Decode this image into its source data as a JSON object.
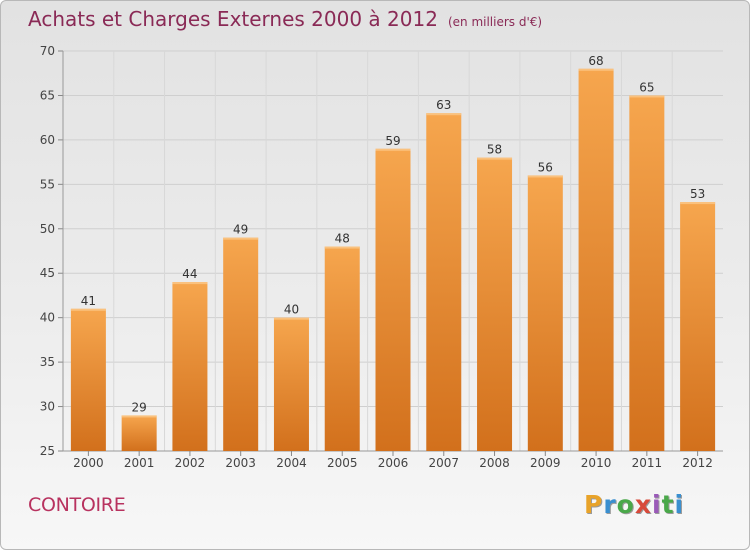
{
  "chart_data": {
    "type": "bar",
    "title": "Achats et Charges Externes 2000 à 2012",
    "unit_label": "(en milliers d'€)",
    "categories": [
      "2000",
      "2001",
      "2002",
      "2003",
      "2004",
      "2005",
      "2006",
      "2007",
      "2008",
      "2009",
      "2010",
      "2011",
      "2012"
    ],
    "values": [
      41,
      29,
      44,
      49,
      40,
      48,
      59,
      63,
      58,
      56,
      68,
      65,
      53
    ],
    "ylim": [
      25,
      70
    ],
    "yticks": [
      25,
      30,
      35,
      40,
      45,
      50,
      55,
      60,
      65,
      70
    ],
    "grid": true,
    "bar_color_top": "#f6a64e",
    "bar_color_bottom": "#d2701c"
  },
  "footer": {
    "commune": "CONTOIRE",
    "logo_text": "Proxiti"
  },
  "colors": {
    "title": "#8a2a56",
    "commune": "#b8325f"
  }
}
